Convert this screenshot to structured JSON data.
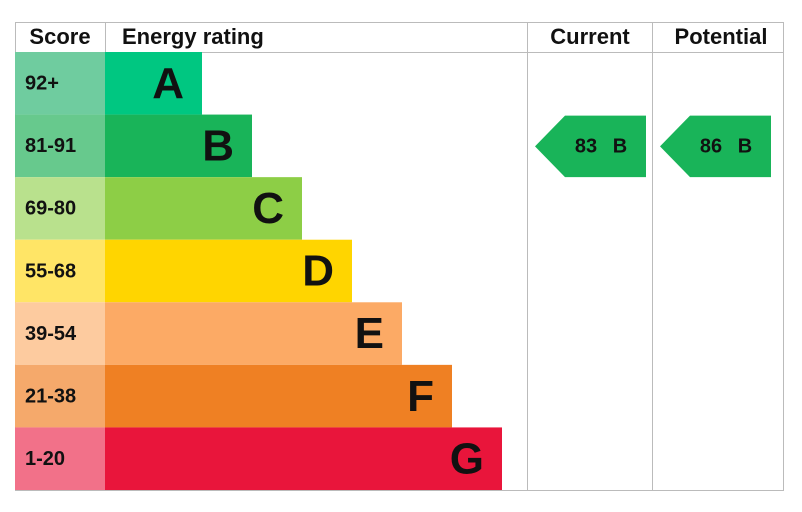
{
  "header": {
    "score": "Score",
    "rating": "Energy rating",
    "current": "Current",
    "potential": "Potential"
  },
  "rows": [
    {
      "score": "92+",
      "band": "A",
      "color": "#00c781",
      "score_color": "#6fcc9f"
    },
    {
      "score": "81-91",
      "band": "B",
      "color": "#19b459",
      "score_color": "#67c98d"
    },
    {
      "score": "69-80",
      "band": "C",
      "color": "#8dce46",
      "score_color": "#b9e18d"
    },
    {
      "score": "55-68",
      "band": "D",
      "color": "#ffd500",
      "score_color": "#ffe566"
    },
    {
      "score": "39-54",
      "band": "E",
      "color": "#fcaa65",
      "score_color": "#fdcb9f"
    },
    {
      "score": "21-38",
      "band": "F",
      "color": "#ef8023",
      "score_color": "#f5a96b"
    },
    {
      "score": "1-20",
      "band": "G",
      "color": "#e9153b",
      "score_color": "#f27189"
    }
  ],
  "current": {
    "value": "83",
    "band": "B",
    "row": 1
  },
  "potential": {
    "value": "86",
    "band": "B",
    "row": 1
  }
}
